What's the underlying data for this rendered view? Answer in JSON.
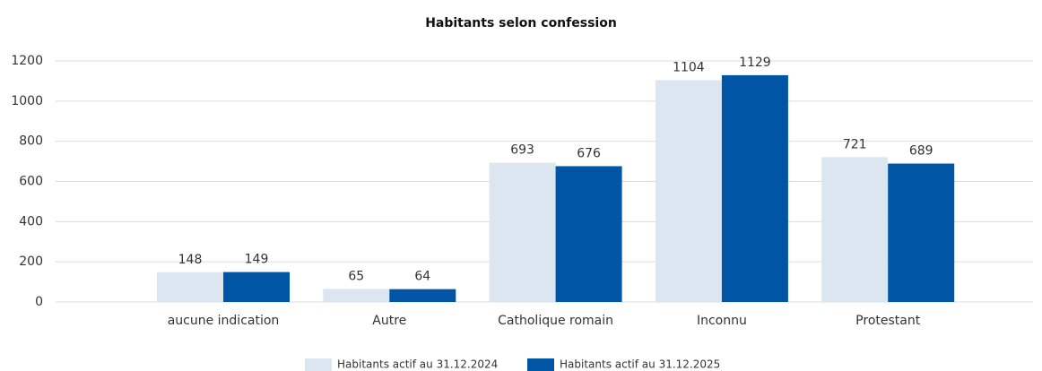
{
  "chart_data": {
    "type": "bar",
    "title": "Habitants selon confession",
    "categories": [
      "aucune indication",
      "Autre",
      "Catholique romain",
      "Inconnu",
      "Protestant"
    ],
    "series": [
      {
        "name": "Habitants actif au 31.12.2024",
        "color": "#dce6f0",
        "values": [
          148,
          65,
          693,
          1104,
          721
        ]
      },
      {
        "name": "Habitants actif au 31.12.2025",
        "color": "#0055a4",
        "values": [
          149,
          64,
          676,
          1129,
          689
        ]
      }
    ],
    "ylim": [
      0,
      1200
    ],
    "yticks": [
      0,
      200,
      400,
      600,
      800,
      1000,
      1200
    ],
    "grid": true,
    "legend": "bottom"
  }
}
